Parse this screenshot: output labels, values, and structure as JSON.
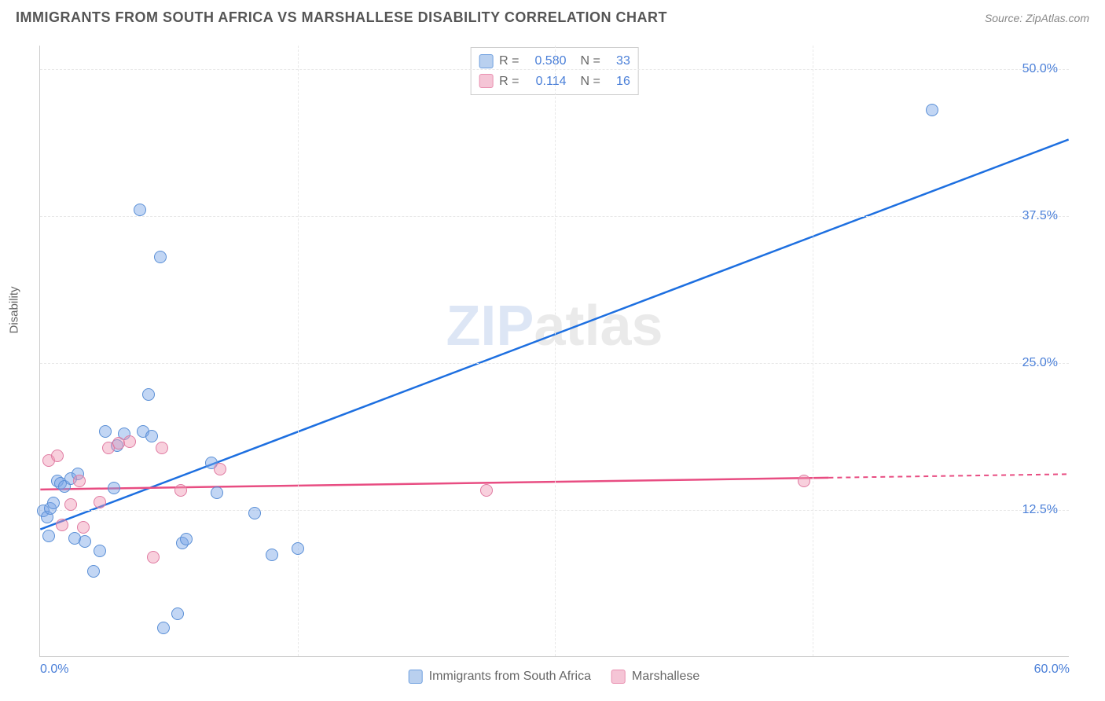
{
  "header": {
    "title": "IMMIGRANTS FROM SOUTH AFRICA VS MARSHALLESE DISABILITY CORRELATION CHART",
    "source": "Source: ZipAtlas.com"
  },
  "watermark": {
    "zip": "ZIP",
    "atlas": "atlas"
  },
  "chart": {
    "type": "scatter",
    "y_axis_label": "Disability",
    "background_color": "#ffffff",
    "grid_color": "#e8e8e8",
    "axis_color": "#cccccc",
    "tick_label_color": "#4a7fd8",
    "tick_fontsize": 16,
    "xlim": [
      0,
      60
    ],
    "ylim": [
      0,
      52
    ],
    "x_ticks": [
      {
        "value": 0,
        "label": "0.0%"
      },
      {
        "value": 60,
        "label": "60.0%"
      }
    ],
    "x_grid_values": [
      15,
      30,
      45
    ],
    "y_ticks": [
      {
        "value": 12.5,
        "label": "12.5%"
      },
      {
        "value": 25.0,
        "label": "25.0%"
      },
      {
        "value": 37.5,
        "label": "37.5%"
      },
      {
        "value": 50.0,
        "label": "50.0%"
      }
    ],
    "series": [
      {
        "name": "Immigrants from South Africa",
        "color_fill": "rgba(120, 165, 230, 0.45)",
        "color_stroke": "#5a8fd6",
        "swatch_fill": "#b9d0ef",
        "swatch_stroke": "#6fa0df",
        "line_color": "#1d6fe0",
        "marker_radius": 8,
        "R": "0.580",
        "N": "33",
        "regression": {
          "x1": 0,
          "y1": 10.8,
          "x2": 60,
          "y2": 44.0
        },
        "points": [
          [
            0.2,
            12.4
          ],
          [
            0.4,
            11.9
          ],
          [
            0.6,
            12.6
          ],
          [
            0.8,
            13.1
          ],
          [
            1.0,
            15.0
          ],
          [
            0.5,
            10.3
          ],
          [
            1.2,
            14.8
          ],
          [
            1.4,
            14.5
          ],
          [
            1.8,
            15.2
          ],
          [
            2.0,
            10.1
          ],
          [
            2.2,
            15.6
          ],
          [
            2.6,
            9.8
          ],
          [
            3.1,
            7.3
          ],
          [
            3.5,
            9.0
          ],
          [
            3.8,
            19.2
          ],
          [
            4.3,
            14.4
          ],
          [
            4.5,
            18.0
          ],
          [
            4.9,
            19.0
          ],
          [
            5.8,
            38.0
          ],
          [
            6.0,
            19.2
          ],
          [
            6.3,
            22.3
          ],
          [
            6.5,
            18.8
          ],
          [
            7.0,
            34.0
          ],
          [
            7.2,
            2.5
          ],
          [
            8.0,
            3.7
          ],
          [
            8.3,
            9.7
          ],
          [
            8.5,
            10.0
          ],
          [
            10.0,
            16.5
          ],
          [
            10.3,
            14.0
          ],
          [
            12.5,
            12.2
          ],
          [
            13.5,
            8.7
          ],
          [
            15.0,
            9.2
          ],
          [
            52.0,
            46.5
          ]
        ]
      },
      {
        "name": "Marshallese",
        "color_fill": "rgba(240, 150, 180, 0.45)",
        "color_stroke": "#e07ba2",
        "swatch_fill": "#f5c5d6",
        "swatch_stroke": "#e98fb0",
        "line_color": "#e84d82",
        "marker_radius": 8,
        "R": "0.114",
        "N": "16",
        "regression": {
          "x1": 0,
          "y1": 14.2,
          "x2": 46,
          "y2": 15.2,
          "dash_to": 60
        },
        "points": [
          [
            0.5,
            16.7
          ],
          [
            1.0,
            17.1
          ],
          [
            1.3,
            11.2
          ],
          [
            1.8,
            13.0
          ],
          [
            2.3,
            15.0
          ],
          [
            2.5,
            11.0
          ],
          [
            3.5,
            13.2
          ],
          [
            4.0,
            17.8
          ],
          [
            4.6,
            18.2
          ],
          [
            5.2,
            18.3
          ],
          [
            6.6,
            8.5
          ],
          [
            7.1,
            17.8
          ],
          [
            8.2,
            14.2
          ],
          [
            10.5,
            16.0
          ],
          [
            26.0,
            14.2
          ],
          [
            44.5,
            15.0
          ]
        ]
      }
    ],
    "bottom_legend": [
      {
        "label": "Immigrants from South Africa",
        "series_idx": 0
      },
      {
        "label": "Marshallese",
        "series_idx": 1
      }
    ]
  }
}
